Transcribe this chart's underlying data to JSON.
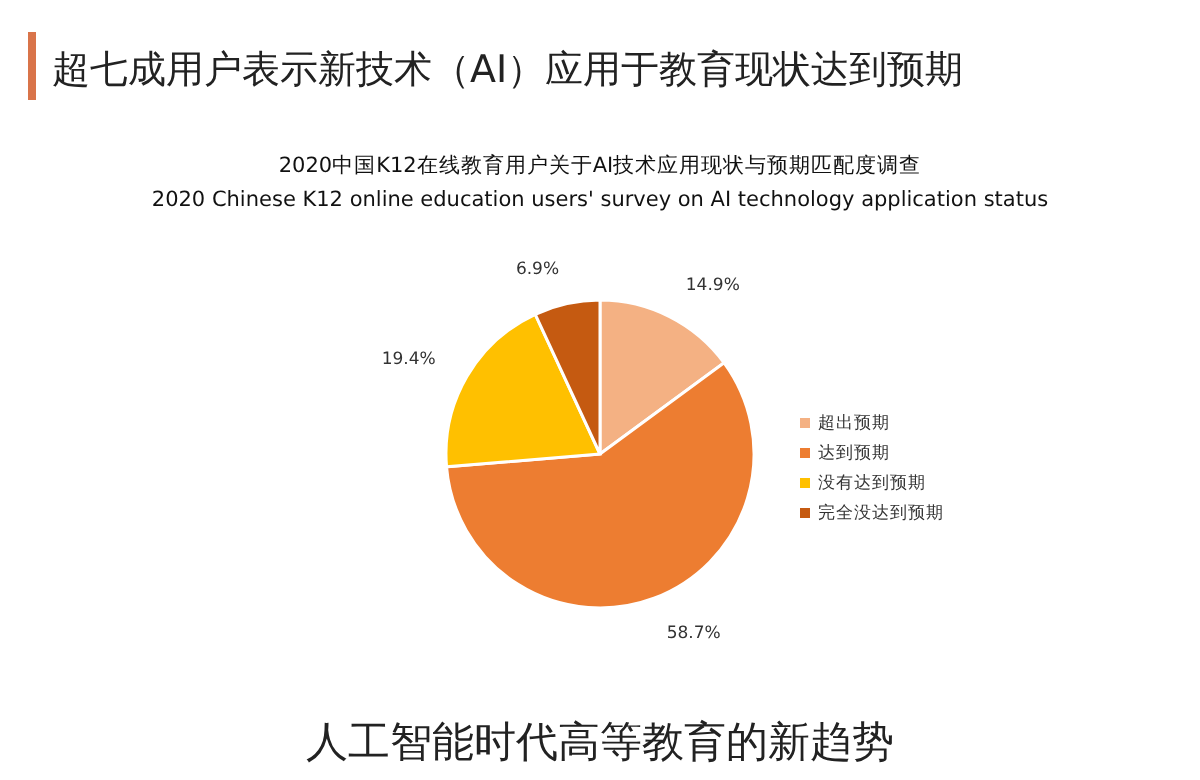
{
  "chart_data": {
    "type": "pie",
    "title": "超七成用户表示新技术（AI）应用于教育现状达到预期",
    "subtitle": "2020中国K12在线教育用户关于AI技术应用现状与预期匹配度调查\n2020 Chinese K12 online education users' survey on AI technology application status",
    "categories": [
      "超出预期",
      "达到预期",
      "没有达到预期",
      "完全没达到预期"
    ],
    "values": [
      14.9,
      58.7,
      19.4,
      6.9
    ],
    "value_labels": [
      "14.9%",
      "58.7%",
      "19.4%",
      "6.9%"
    ],
    "colors": [
      "#f4b183",
      "#ed7d31",
      "#ffc000",
      "#c55a11"
    ],
    "legend": "right",
    "annotations": [
      "人工智能时代高等教育的新趋势"
    ]
  }
}
